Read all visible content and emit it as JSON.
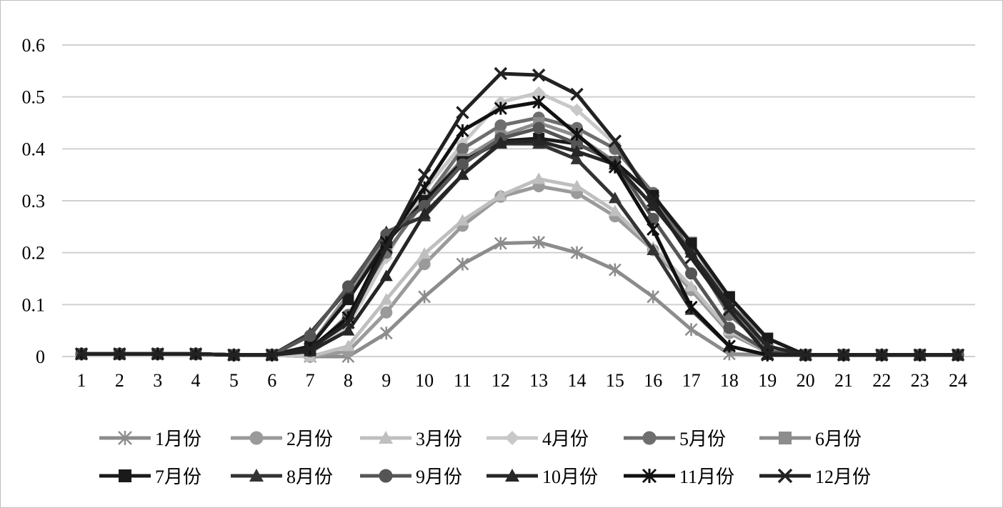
{
  "chart_data": {
    "type": "line",
    "title": "",
    "xlabel": "",
    "ylabel": "",
    "x": [
      "1",
      "2",
      "3",
      "4",
      "5",
      "6",
      "7",
      "8",
      "9",
      "10",
      "11",
      "12",
      "13",
      "14",
      "15",
      "16",
      "17",
      "18",
      "19",
      "20",
      "21",
      "22",
      "23",
      "24"
    ],
    "ylim": [
      0,
      0.6
    ],
    "y_ticks": [
      "0",
      "0.1",
      "0.2",
      "0.3",
      "0.4",
      "0.5",
      "0.6"
    ],
    "grid": true,
    "legend_position": "bottom",
    "series": [
      {
        "name": "1月份",
        "marker": "asterisk",
        "color": "#8c8c8c",
        "values": [
          0.005,
          0.005,
          0.005,
          0.005,
          0.003,
          0.003,
          0.0,
          0.0,
          0.045,
          0.115,
          0.178,
          0.218,
          0.22,
          0.2,
          0.167,
          0.115,
          0.052,
          0.005,
          0.003,
          0.003,
          0.003,
          0.003,
          0.003,
          0.003
        ]
      },
      {
        "name": "2月份",
        "marker": "circle",
        "color": "#9a9a9a",
        "values": [
          0.005,
          0.005,
          0.005,
          0.005,
          0.003,
          0.003,
          0.0,
          0.01,
          0.085,
          0.178,
          0.252,
          0.308,
          0.328,
          0.315,
          0.27,
          0.205,
          0.128,
          0.045,
          0.008,
          0.003,
          0.003,
          0.003,
          0.003,
          0.003
        ]
      },
      {
        "name": "3月份",
        "marker": "triangle",
        "color": "#bfbfbf",
        "values": [
          0.005,
          0.005,
          0.005,
          0.005,
          0.003,
          0.003,
          0.0,
          0.02,
          0.11,
          0.198,
          0.262,
          0.31,
          0.342,
          0.328,
          0.28,
          0.21,
          0.135,
          0.05,
          0.01,
          0.003,
          0.003,
          0.003,
          0.003,
          0.003
        ]
      },
      {
        "name": "4月份",
        "marker": "diamond",
        "color": "#c8c8c8",
        "values": [
          0.005,
          0.005,
          0.005,
          0.005,
          0.003,
          0.003,
          0.005,
          0.06,
          0.19,
          0.32,
          0.41,
          0.49,
          0.508,
          0.475,
          0.41,
          0.31,
          0.2,
          0.09,
          0.02,
          0.003,
          0.003,
          0.003,
          0.003,
          0.003
        ]
      },
      {
        "name": "5月份",
        "marker": "circle",
        "color": "#6e6e6e",
        "values": [
          0.005,
          0.005,
          0.005,
          0.005,
          0.003,
          0.003,
          0.01,
          0.08,
          0.2,
          0.3,
          0.4,
          0.445,
          0.46,
          0.44,
          0.4,
          0.315,
          0.2,
          0.08,
          0.02,
          0.003,
          0.003,
          0.003,
          0.003,
          0.003
        ]
      },
      {
        "name": "6月份",
        "marker": "square",
        "color": "#8c8c8c",
        "values": [
          0.005,
          0.005,
          0.005,
          0.005,
          0.003,
          0.003,
          0.02,
          0.12,
          0.23,
          0.3,
          0.38,
          0.425,
          0.45,
          0.425,
          0.375,
          0.31,
          0.22,
          0.1,
          0.035,
          0.003,
          0.003,
          0.003,
          0.003,
          0.003
        ]
      },
      {
        "name": "7月份",
        "marker": "square",
        "color": "#1a1a1a",
        "values": [
          0.005,
          0.005,
          0.005,
          0.005,
          0.003,
          0.003,
          0.02,
          0.11,
          0.22,
          0.3,
          0.375,
          0.415,
          0.42,
          0.41,
          0.375,
          0.31,
          0.218,
          0.115,
          0.035,
          0.003,
          0.003,
          0.003,
          0.003,
          0.003
        ]
      },
      {
        "name": "8月份",
        "marker": "triangle",
        "color": "#333333",
        "values": [
          0.005,
          0.005,
          0.005,
          0.005,
          0.003,
          0.003,
          0.045,
          0.13,
          0.24,
          0.27,
          0.35,
          0.41,
          0.41,
          0.38,
          0.305,
          0.205,
          0.09,
          0.02,
          0.003,
          0.003,
          0.003,
          0.003,
          0.003,
          0.003
        ]
      },
      {
        "name": "9月份",
        "marker": "circle",
        "color": "#555555",
        "values": [
          0.005,
          0.005,
          0.005,
          0.005,
          0.003,
          0.003,
          0.04,
          0.135,
          0.235,
          0.29,
          0.37,
          0.42,
          0.44,
          0.41,
          0.375,
          0.265,
          0.16,
          0.055,
          0.01,
          0.003,
          0.003,
          0.003,
          0.003,
          0.003
        ]
      },
      {
        "name": "10月份",
        "marker": "triangle",
        "color": "#262626",
        "values": [
          0.005,
          0.005,
          0.005,
          0.005,
          0.003,
          0.003,
          0.01,
          0.05,
          0.155,
          0.275,
          0.35,
          0.412,
          0.415,
          0.395,
          0.37,
          0.29,
          0.2,
          0.1,
          0.02,
          0.003,
          0.003,
          0.003,
          0.003,
          0.003
        ]
      },
      {
        "name": "11月份",
        "marker": "star",
        "color": "#111111",
        "values": [
          0.005,
          0.005,
          0.005,
          0.005,
          0.003,
          0.003,
          0.015,
          0.075,
          0.22,
          0.325,
          0.435,
          0.478,
          0.49,
          0.428,
          0.365,
          0.245,
          0.095,
          0.02,
          0.003,
          0.003,
          0.003,
          0.003,
          0.003,
          0.003
        ]
      },
      {
        "name": "12月份",
        "marker": "x",
        "color": "#222222",
        "values": [
          0.005,
          0.005,
          0.005,
          0.005,
          0.003,
          0.003,
          0.015,
          0.065,
          0.21,
          0.35,
          0.47,
          0.545,
          0.542,
          0.505,
          0.415,
          0.3,
          0.19,
          0.09,
          0.005,
          0.003,
          0.003,
          0.003,
          0.003,
          0.003
        ]
      }
    ]
  }
}
